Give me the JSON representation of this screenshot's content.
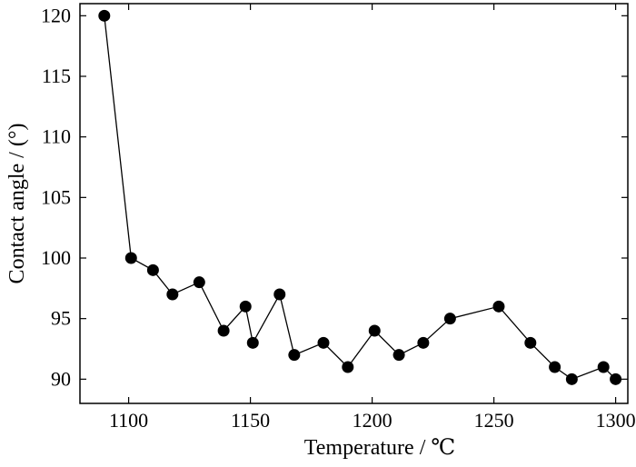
{
  "chart_data": {
    "type": "scatter",
    "xlabel": "Temperature / ℃",
    "ylabel": "Contact angle / (°)",
    "xlim": [
      1080,
      1305
    ],
    "ylim": [
      88,
      121
    ],
    "xticks": [
      1100,
      1150,
      1200,
      1250,
      1300
    ],
    "yticks": [
      90,
      95,
      100,
      105,
      110,
      115,
      120
    ],
    "grid": false,
    "line_connected": true,
    "marker": "filled-circle",
    "color": "#000000",
    "series": [
      {
        "x": [
          1090,
          1101,
          1110,
          1118,
          1129,
          1139,
          1148,
          1151,
          1162,
          1168,
          1180,
          1190,
          1201,
          1211,
          1221,
          1232,
          1252,
          1265,
          1275,
          1282,
          1295,
          1300
        ],
        "y": [
          120,
          100,
          99,
          97,
          98,
          94,
          96,
          93,
          97,
          92,
          93,
          91,
          94,
          92,
          93,
          95,
          96,
          93,
          91,
          90,
          91,
          90
        ]
      }
    ]
  }
}
